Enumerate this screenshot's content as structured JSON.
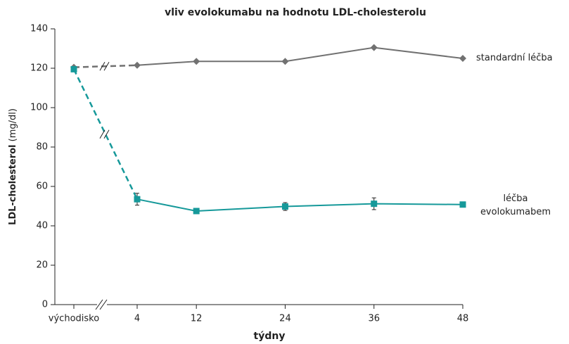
{
  "chart_data": {
    "type": "line",
    "title": "vliv evolokumabu na hodnotu LDL-cholesterolu",
    "ylabel": "LDL-cholesterol",
    "ylabel_unit": "(mg/dl)",
    "xlabel": "týdny",
    "categories": [
      "východisko",
      "4",
      "12",
      "24",
      "36",
      "48"
    ],
    "series": [
      {
        "name": "standardní léčba",
        "color": "#717171",
        "marker": "diamond",
        "values": [
          120.5,
          121.5,
          123.5,
          123.5,
          130.5,
          125
        ]
      },
      {
        "name": "léčba evolokumabem",
        "color": "#16999a",
        "marker": "square",
        "values": [
          119.5,
          53.5,
          47.5,
          49.8,
          51.2,
          50.8
        ],
        "errors": [
          0,
          3,
          0.8,
          2,
          3,
          0.8
        ]
      }
    ],
    "ylim": [
      0,
      140
    ],
    "yticks": [
      0,
      20,
      40,
      60,
      80,
      100,
      120,
      140
    ],
    "grid": false
  }
}
